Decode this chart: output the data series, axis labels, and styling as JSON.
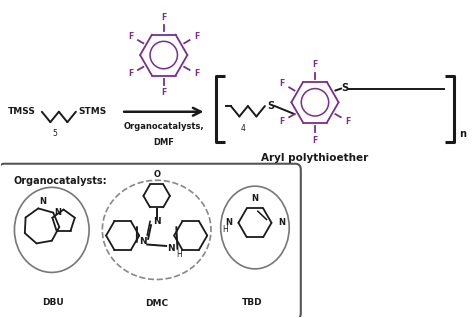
{
  "fig_width": 4.74,
  "fig_height": 3.18,
  "dpi": 100,
  "bg_color": "#ffffff",
  "purple": "#7B2D8B",
  "black": "#1a1a1a",
  "gray": "#888888",
  "title_text": "Aryl polythioether",
  "arrow_label1": "Organocatalysts,",
  "arrow_label2": "DMF",
  "subscript5": "5",
  "subscript4": "4",
  "subscript_n": "n",
  "box_label": "Organocatalysts:",
  "dbu_label": "DBU",
  "dmc_label": "DMC",
  "tbd_label": "TBD"
}
